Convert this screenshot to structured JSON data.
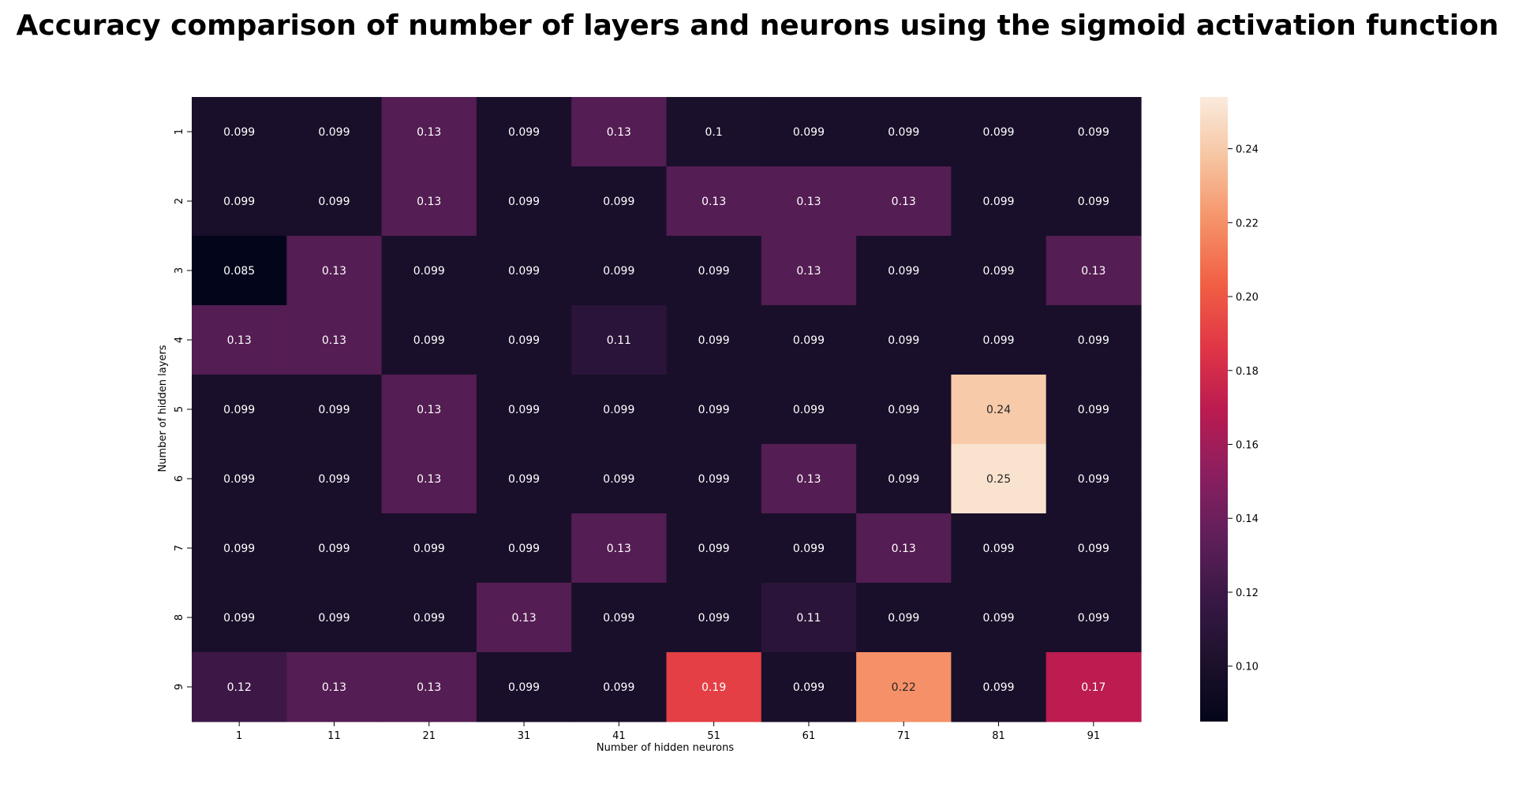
{
  "chart_data": {
    "type": "heatmap",
    "title": "Accuracy comparison of number of layers and neurons using the sigmoid activation function",
    "xlabel": "Number of hidden neurons",
    "ylabel": "Number of hidden layers",
    "x_categories": [
      "1",
      "11",
      "21",
      "31",
      "41",
      "51",
      "61",
      "71",
      "81",
      "91"
    ],
    "y_categories": [
      "1",
      "2",
      "3",
      "4",
      "5",
      "6",
      "7",
      "8",
      "9"
    ],
    "values": [
      [
        0.099,
        0.099,
        0.13,
        0.099,
        0.13,
        0.1,
        0.099,
        0.099,
        0.099,
        0.099
      ],
      [
        0.099,
        0.099,
        0.13,
        0.099,
        0.099,
        0.13,
        0.13,
        0.13,
        0.099,
        0.099
      ],
      [
        0.085,
        0.13,
        0.099,
        0.099,
        0.099,
        0.099,
        0.13,
        0.099,
        0.099,
        0.13
      ],
      [
        0.13,
        0.13,
        0.099,
        0.099,
        0.11,
        0.099,
        0.099,
        0.099,
        0.099,
        0.099
      ],
      [
        0.099,
        0.099,
        0.13,
        0.099,
        0.099,
        0.099,
        0.099,
        0.099,
        0.24,
        0.099
      ],
      [
        0.099,
        0.099,
        0.13,
        0.099,
        0.099,
        0.099,
        0.13,
        0.099,
        0.25,
        0.099
      ],
      [
        0.099,
        0.099,
        0.099,
        0.099,
        0.13,
        0.099,
        0.099,
        0.13,
        0.099,
        0.099
      ],
      [
        0.099,
        0.099,
        0.099,
        0.13,
        0.099,
        0.099,
        0.11,
        0.099,
        0.099,
        0.099
      ],
      [
        0.12,
        0.13,
        0.13,
        0.099,
        0.099,
        0.19,
        0.099,
        0.22,
        0.099,
        0.17
      ]
    ],
    "cell_labels": [
      [
        "0.099",
        "0.099",
        "0.13",
        "0.099",
        "0.13",
        "0.1",
        "0.099",
        "0.099",
        "0.099",
        "0.099"
      ],
      [
        "0.099",
        "0.099",
        "0.13",
        "0.099",
        "0.099",
        "0.13",
        "0.13",
        "0.13",
        "0.099",
        "0.099"
      ],
      [
        "0.085",
        "0.13",
        "0.099",
        "0.099",
        "0.099",
        "0.099",
        "0.13",
        "0.099",
        "0.099",
        "0.13"
      ],
      [
        "0.13",
        "0.13",
        "0.099",
        "0.099",
        "0.11",
        "0.099",
        "0.099",
        "0.099",
        "0.099",
        "0.099"
      ],
      [
        "0.099",
        "0.099",
        "0.13",
        "0.099",
        "0.099",
        "0.099",
        "0.099",
        "0.099",
        "0.24",
        "0.099"
      ],
      [
        "0.099",
        "0.099",
        "0.13",
        "0.099",
        "0.099",
        "0.099",
        "0.13",
        "0.099",
        "0.25",
        "0.099"
      ],
      [
        "0.099",
        "0.099",
        "0.099",
        "0.099",
        "0.13",
        "0.099",
        "0.099",
        "0.13",
        "0.099",
        "0.099"
      ],
      [
        "0.099",
        "0.099",
        "0.099",
        "0.13",
        "0.099",
        "0.099",
        "0.11",
        "0.099",
        "0.099",
        "0.099"
      ],
      [
        "0.12",
        "0.13",
        "0.13",
        "0.099",
        "0.099",
        "0.19",
        "0.099",
        "0.22",
        "0.099",
        "0.17"
      ]
    ],
    "colorscale": "rocket",
    "vmin": 0.085,
    "vmax": 0.254,
    "colorbar_ticks": [
      "0.10",
      "0.12",
      "0.14",
      "0.16",
      "0.18",
      "0.20",
      "0.22",
      "0.24"
    ],
    "colorbar_tick_values": [
      0.1,
      0.12,
      0.14,
      0.16,
      0.18,
      0.2,
      0.22,
      0.24
    ],
    "light_text_color": "#ffffff",
    "dark_text_color": "#262626"
  }
}
